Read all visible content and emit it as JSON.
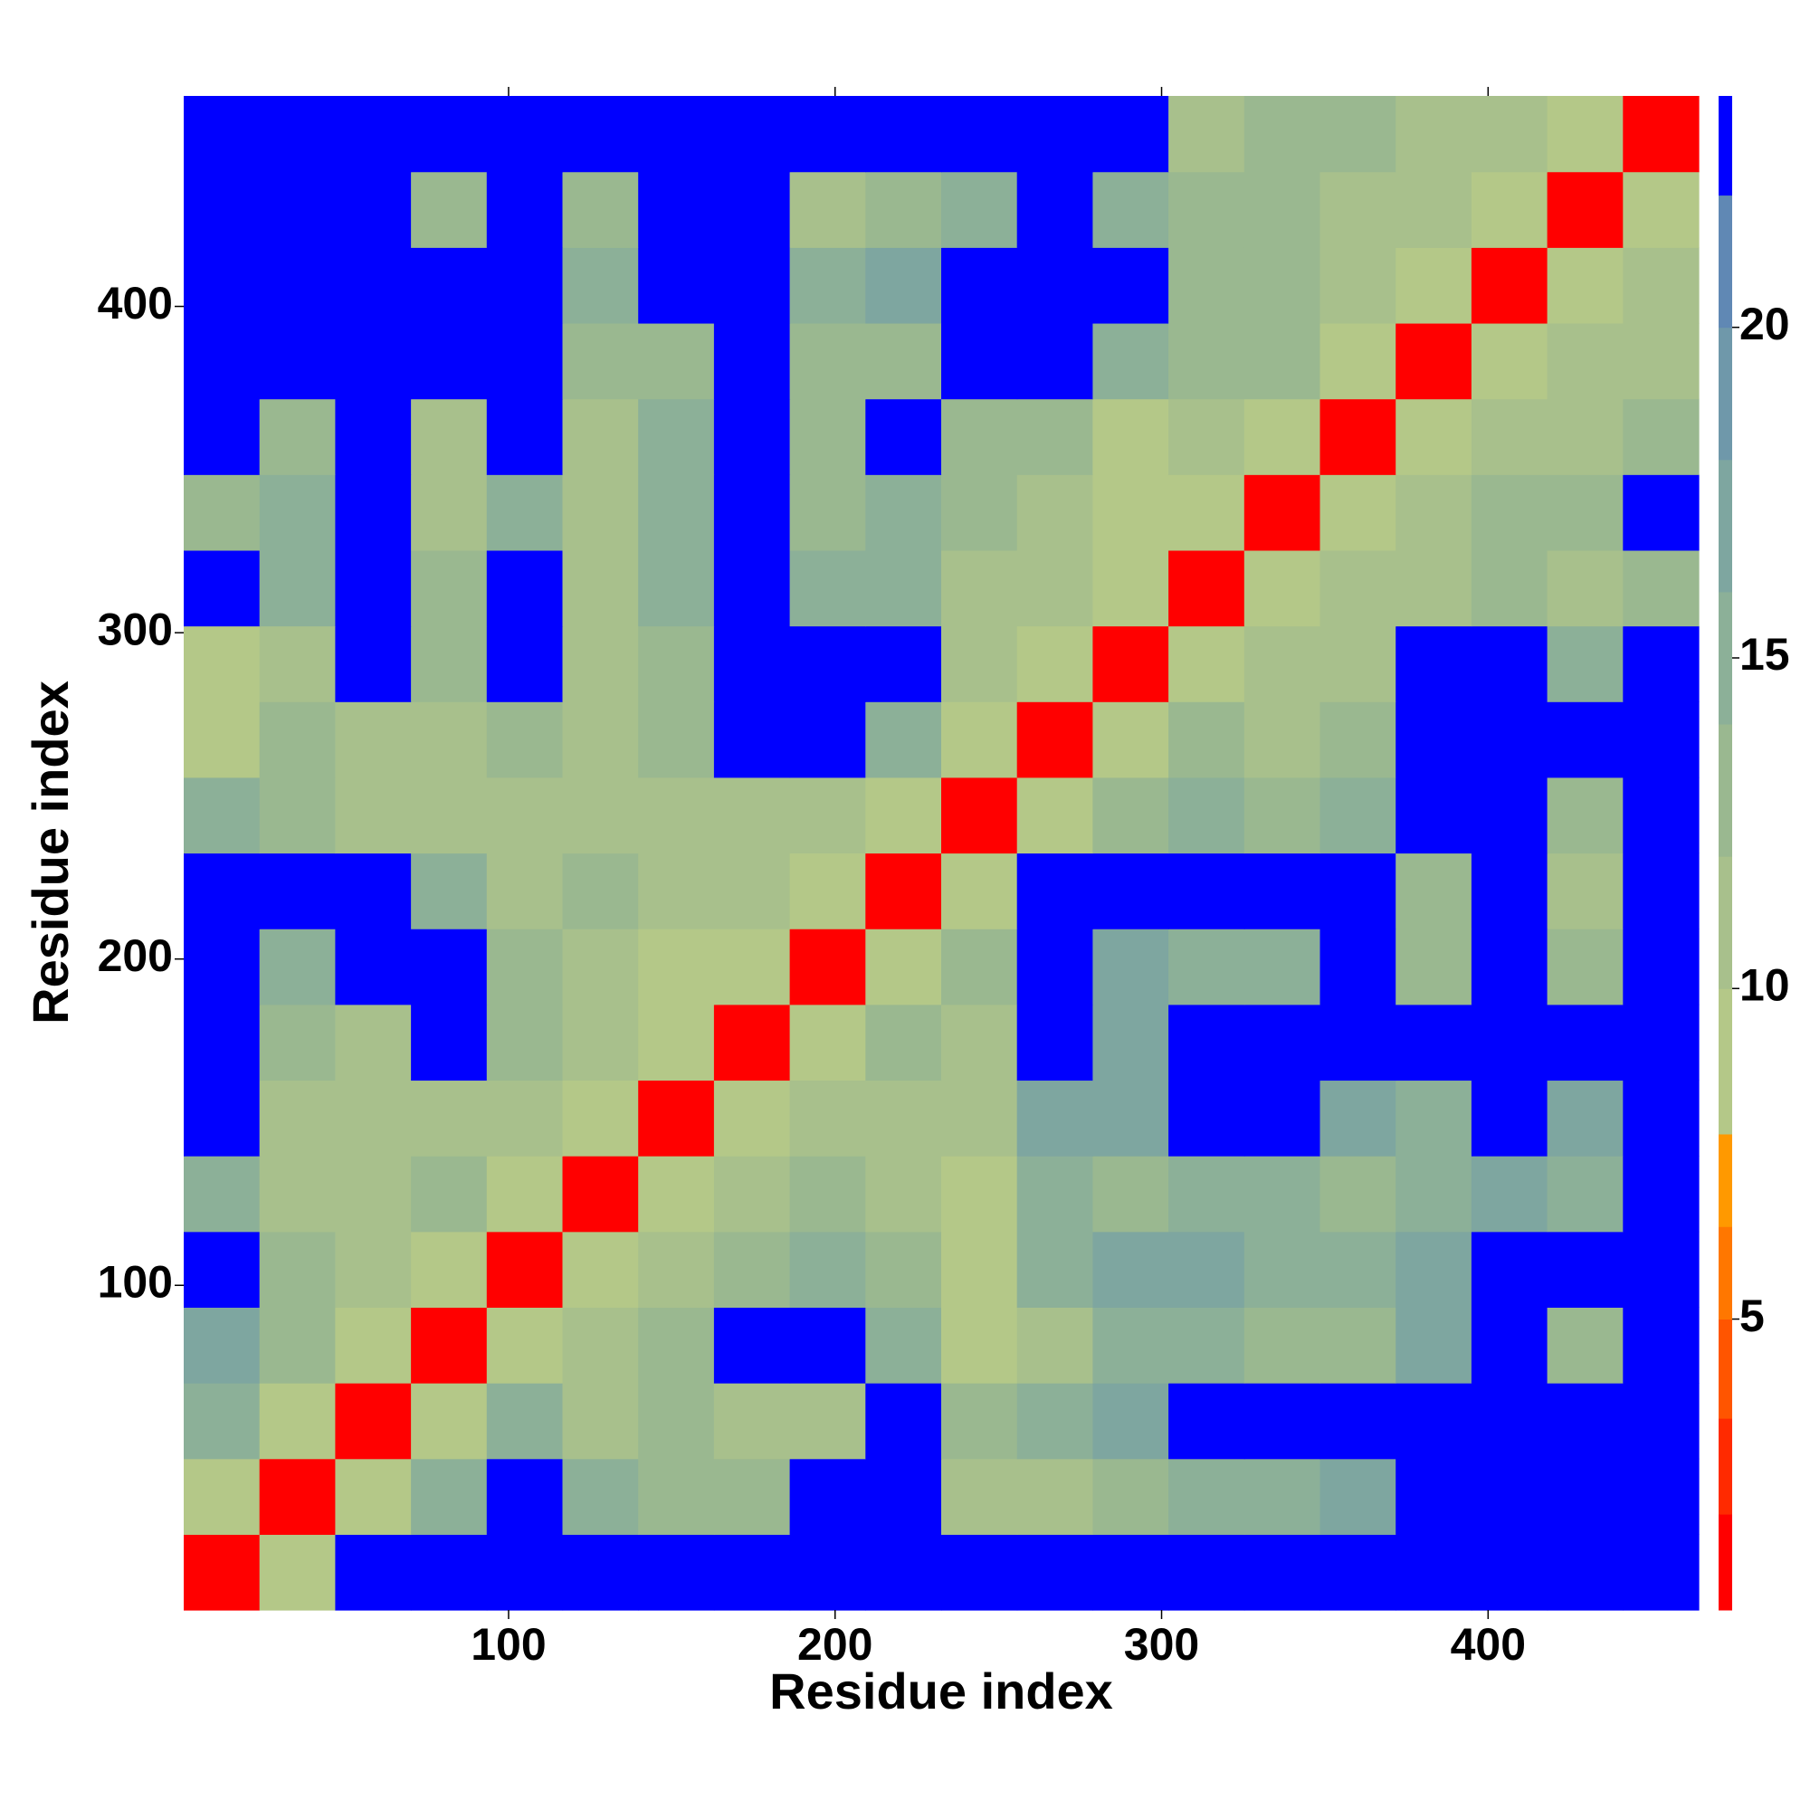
{
  "chart_data": {
    "type": "heatmap",
    "xlabel": "Residue index",
    "ylabel": "Residue index",
    "xlim": [
      0.5,
      464.5
    ],
    "ylim": [
      0.5,
      464.5
    ],
    "xticks": [
      100,
      200,
      300,
      400
    ],
    "yticks": [
      100,
      200,
      300,
      400
    ],
    "z": [
      [
        2,
        9,
        23,
        23,
        23,
        23,
        23,
        23,
        23,
        23,
        23,
        23,
        23,
        23,
        23,
        23,
        23,
        23,
        23,
        23
      ],
      [
        9,
        2,
        10,
        16,
        23,
        16,
        14,
        14,
        23,
        23,
        12,
        12,
        13,
        16,
        16,
        18,
        23,
        23,
        23,
        23
      ],
      [
        16,
        9,
        2,
        9,
        16,
        12,
        14,
        12,
        12,
        23,
        13,
        16,
        18,
        23,
        23,
        23,
        23,
        23,
        23,
        23
      ],
      [
        18,
        13,
        9,
        2,
        9,
        12,
        13,
        23,
        23,
        16,
        10,
        11,
        16,
        16,
        13,
        14,
        18,
        23,
        14,
        23
      ],
      [
        23,
        14,
        11,
        9,
        2,
        9,
        12,
        14,
        16,
        14,
        10,
        16,
        18,
        18,
        16,
        16,
        18,
        23,
        23,
        23
      ],
      [
        16,
        12,
        12,
        14,
        9,
        2,
        9,
        12,
        14,
        11,
        10,
        16,
        14,
        16,
        15,
        13,
        16,
        18,
        16,
        23
      ],
      [
        23,
        12,
        12,
        11,
        12,
        9,
        2,
        9,
        12,
        12,
        11,
        18,
        18,
        23,
        23,
        18,
        16,
        23,
        18,
        23
      ],
      [
        23,
        13,
        12,
        23,
        14,
        11,
        9,
        2,
        9,
        13,
        12,
        23,
        18,
        23,
        23,
        23,
        23,
        23,
        23,
        23
      ],
      [
        23,
        16,
        23,
        23,
        14,
        12,
        10,
        9,
        2,
        9,
        13,
        23,
        18,
        16,
        16,
        23,
        13,
        23,
        14,
        23
      ],
      [
        23,
        23,
        23,
        16,
        12,
        13,
        12,
        12,
        9,
        2,
        9,
        23,
        23,
        23,
        23,
        23,
        13,
        23,
        12,
        23
      ],
      [
        16,
        13,
        12,
        12,
        11,
        12,
        12,
        12,
        11,
        10,
        2,
        9,
        13,
        16,
        14,
        16,
        23,
        23,
        13,
        23
      ],
      [
        10,
        13,
        12,
        11,
        13,
        12,
        14,
        23,
        23,
        16,
        10,
        2,
        9,
        13,
        12,
        13,
        23,
        23,
        23,
        23
      ],
      [
        10,
        12,
        23,
        13,
        23,
        12,
        14,
        23,
        23,
        23,
        12,
        9,
        2,
        9,
        11,
        11,
        23,
        23,
        16,
        23
      ],
      [
        23,
        16,
        23,
        14,
        23,
        12,
        16,
        23,
        16,
        16,
        12,
        11,
        9,
        2,
        9,
        11,
        12,
        13,
        11,
        13
      ],
      [
        13,
        16,
        23,
        12,
        16,
        12,
        16,
        23,
        14,
        16,
        13,
        11,
        10,
        9,
        2,
        9,
        12,
        13,
        13,
        23
      ],
      [
        23,
        14,
        23,
        12,
        23,
        12,
        16,
        23,
        14,
        23,
        14,
        13,
        10,
        11,
        9,
        2,
        9,
        11,
        12,
        13
      ],
      [
        23,
        23,
        23,
        23,
        23,
        13,
        14,
        23,
        13,
        13,
        23,
        23,
        16,
        13,
        13,
        9,
        2,
        9,
        11,
        12
      ],
      [
        23,
        23,
        23,
        23,
        23,
        16,
        23,
        23,
        16,
        18,
        23,
        23,
        23,
        14,
        14,
        11,
        9,
        2,
        9,
        11
      ],
      [
        23,
        23,
        23,
        13,
        23,
        13,
        23,
        23,
        12,
        13,
        16,
        23,
        16,
        13,
        14,
        11,
        11,
        9,
        2,
        9
      ],
      [
        23,
        23,
        23,
        23,
        23,
        23,
        23,
        23,
        23,
        23,
        23,
        23,
        23,
        12,
        14,
        13,
        12,
        11,
        9,
        2
      ]
    ],
    "colorbar": {
      "lim": [
        0.6,
        23.5
      ],
      "ticks": [
        5,
        10,
        15,
        20
      ],
      "levels": [
        0.6,
        2.05,
        3.5,
        5,
        6.4,
        7.8,
        10,
        12,
        14,
        16,
        18,
        20,
        22,
        23.5
      ],
      "colors": [
        "#ff0000",
        "#ff2a00",
        "#ff5500",
        "#ff7700",
        "#ff9900",
        "#b4c888",
        "#a8c08c",
        "#9ab890",
        "#8cb098",
        "#7ea6a0",
        "#6f98aa",
        "#6088b4",
        "#0000ff"
      ]
    }
  }
}
